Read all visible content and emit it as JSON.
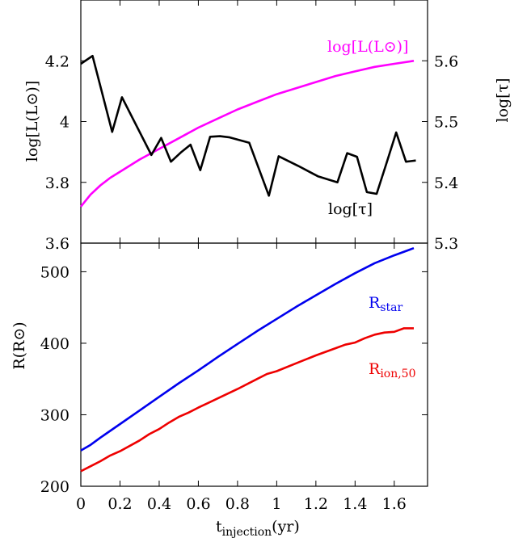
{
  "chart_data": [
    {
      "type": "line",
      "panel": "top",
      "xlim": [
        0,
        1.77
      ],
      "ylim_left": [
        3.6,
        4.4
      ],
      "ylim_right": [
        5.3,
        5.7
      ],
      "y_ticks_left": [
        "3.6",
        "3.8",
        "4",
        "4.2"
      ],
      "y_ticks_right": [
        "5.3",
        "5.4",
        "5.5",
        "5.6"
      ],
      "ylabel_left": "log[L(L⊙)]",
      "ylabel_right": "log[τ]",
      "series": [
        {
          "name": "log[L(L⊙)]",
          "axis": "left",
          "color": "#ff00ff",
          "x": [
            0,
            0.05,
            0.1,
            0.15,
            0.2,
            0.3,
            0.4,
            0.5,
            0.6,
            0.7,
            0.8,
            0.9,
            1.0,
            1.1,
            1.2,
            1.3,
            1.4,
            1.5,
            1.6,
            1.7
          ],
          "y": [
            3.72,
            3.76,
            3.79,
            3.815,
            3.835,
            3.875,
            3.91,
            3.945,
            3.98,
            4.01,
            4.04,
            4.065,
            4.09,
            4.11,
            4.13,
            4.15,
            4.165,
            4.18,
            4.19,
            4.2
          ]
        },
        {
          "name": "log[τ]",
          "axis": "right",
          "color": "#000000",
          "x": [
            0,
            0.06,
            0.16,
            0.21,
            0.36,
            0.41,
            0.46,
            0.51,
            0.56,
            0.61,
            0.66,
            0.71,
            0.76,
            0.86,
            0.96,
            1.01,
            1.06,
            1.11,
            1.21,
            1.31,
            1.36,
            1.41,
            1.46,
            1.51,
            1.56,
            1.61,
            1.66,
            1.71
          ],
          "y": [
            5.595,
            5.608,
            5.483,
            5.54,
            5.445,
            5.473,
            5.434,
            5.449,
            5.462,
            5.42,
            5.475,
            5.476,
            5.474,
            5.465,
            5.378,
            5.443,
            5.435,
            5.427,
            5.41,
            5.4,
            5.448,
            5.442,
            5.384,
            5.381,
            5.431,
            5.482,
            5.434,
            5.436
          ]
        }
      ]
    },
    {
      "type": "line",
      "panel": "bottom",
      "xlim": [
        0,
        1.77
      ],
      "ylim": [
        200,
        540
      ],
      "y_ticks": [
        "200",
        "300",
        "400",
        "500"
      ],
      "x_ticks": [
        "0",
        "0.2",
        "0.4",
        "0.6",
        "0.8",
        "1",
        "1.2",
        "1.4",
        "1.6"
      ],
      "ylabel": "R(R⊙)",
      "xlabel": "t_injection(yr)",
      "series": [
        {
          "name": "R_star",
          "color": "#0000ee",
          "x": [
            0,
            0.05,
            0.1,
            0.2,
            0.3,
            0.4,
            0.5,
            0.6,
            0.7,
            0.8,
            0.9,
            1.0,
            1.1,
            1.2,
            1.3,
            1.4,
            1.5,
            1.6,
            1.7
          ],
          "y": [
            250,
            258,
            268,
            287,
            306,
            325,
            344,
            362,
            381,
            399,
            417,
            434,
            451,
            467,
            483,
            498,
            512,
            523,
            533
          ]
        },
        {
          "name": "R_ion,50",
          "color": "#ee0000",
          "x": [
            0,
            0.05,
            0.1,
            0.15,
            0.2,
            0.3,
            0.35,
            0.4,
            0.45,
            0.5,
            0.55,
            0.6,
            0.7,
            0.8,
            0.9,
            0.95,
            1.0,
            1.1,
            1.2,
            1.3,
            1.35,
            1.4,
            1.45,
            1.5,
            1.55,
            1.6,
            1.65,
            1.7
          ],
          "y": [
            221,
            228,
            235,
            243,
            249,
            264,
            273,
            280,
            289,
            297,
            303,
            310,
            323,
            336,
            350,
            357,
            361,
            372,
            383,
            393,
            398,
            401,
            407,
            412,
            415,
            416,
            421,
            421
          ]
        }
      ]
    }
  ],
  "labels": {
    "top_left_ylabel": "log[L(L⊙)]",
    "top_right_ylabel": "log[τ]",
    "bottom_ylabel": "R(R⊙)",
    "xlabel_main": "t",
    "xlabel_sub": "injection",
    "xlabel_tail": "(yr)",
    "series_L": "log[L(L⊙)]",
    "series_tau": "log[τ]",
    "series_rstar_main": "R",
    "series_rstar_sub": "star",
    "series_rion_main": "R",
    "series_rion_sub": "ion,50"
  }
}
